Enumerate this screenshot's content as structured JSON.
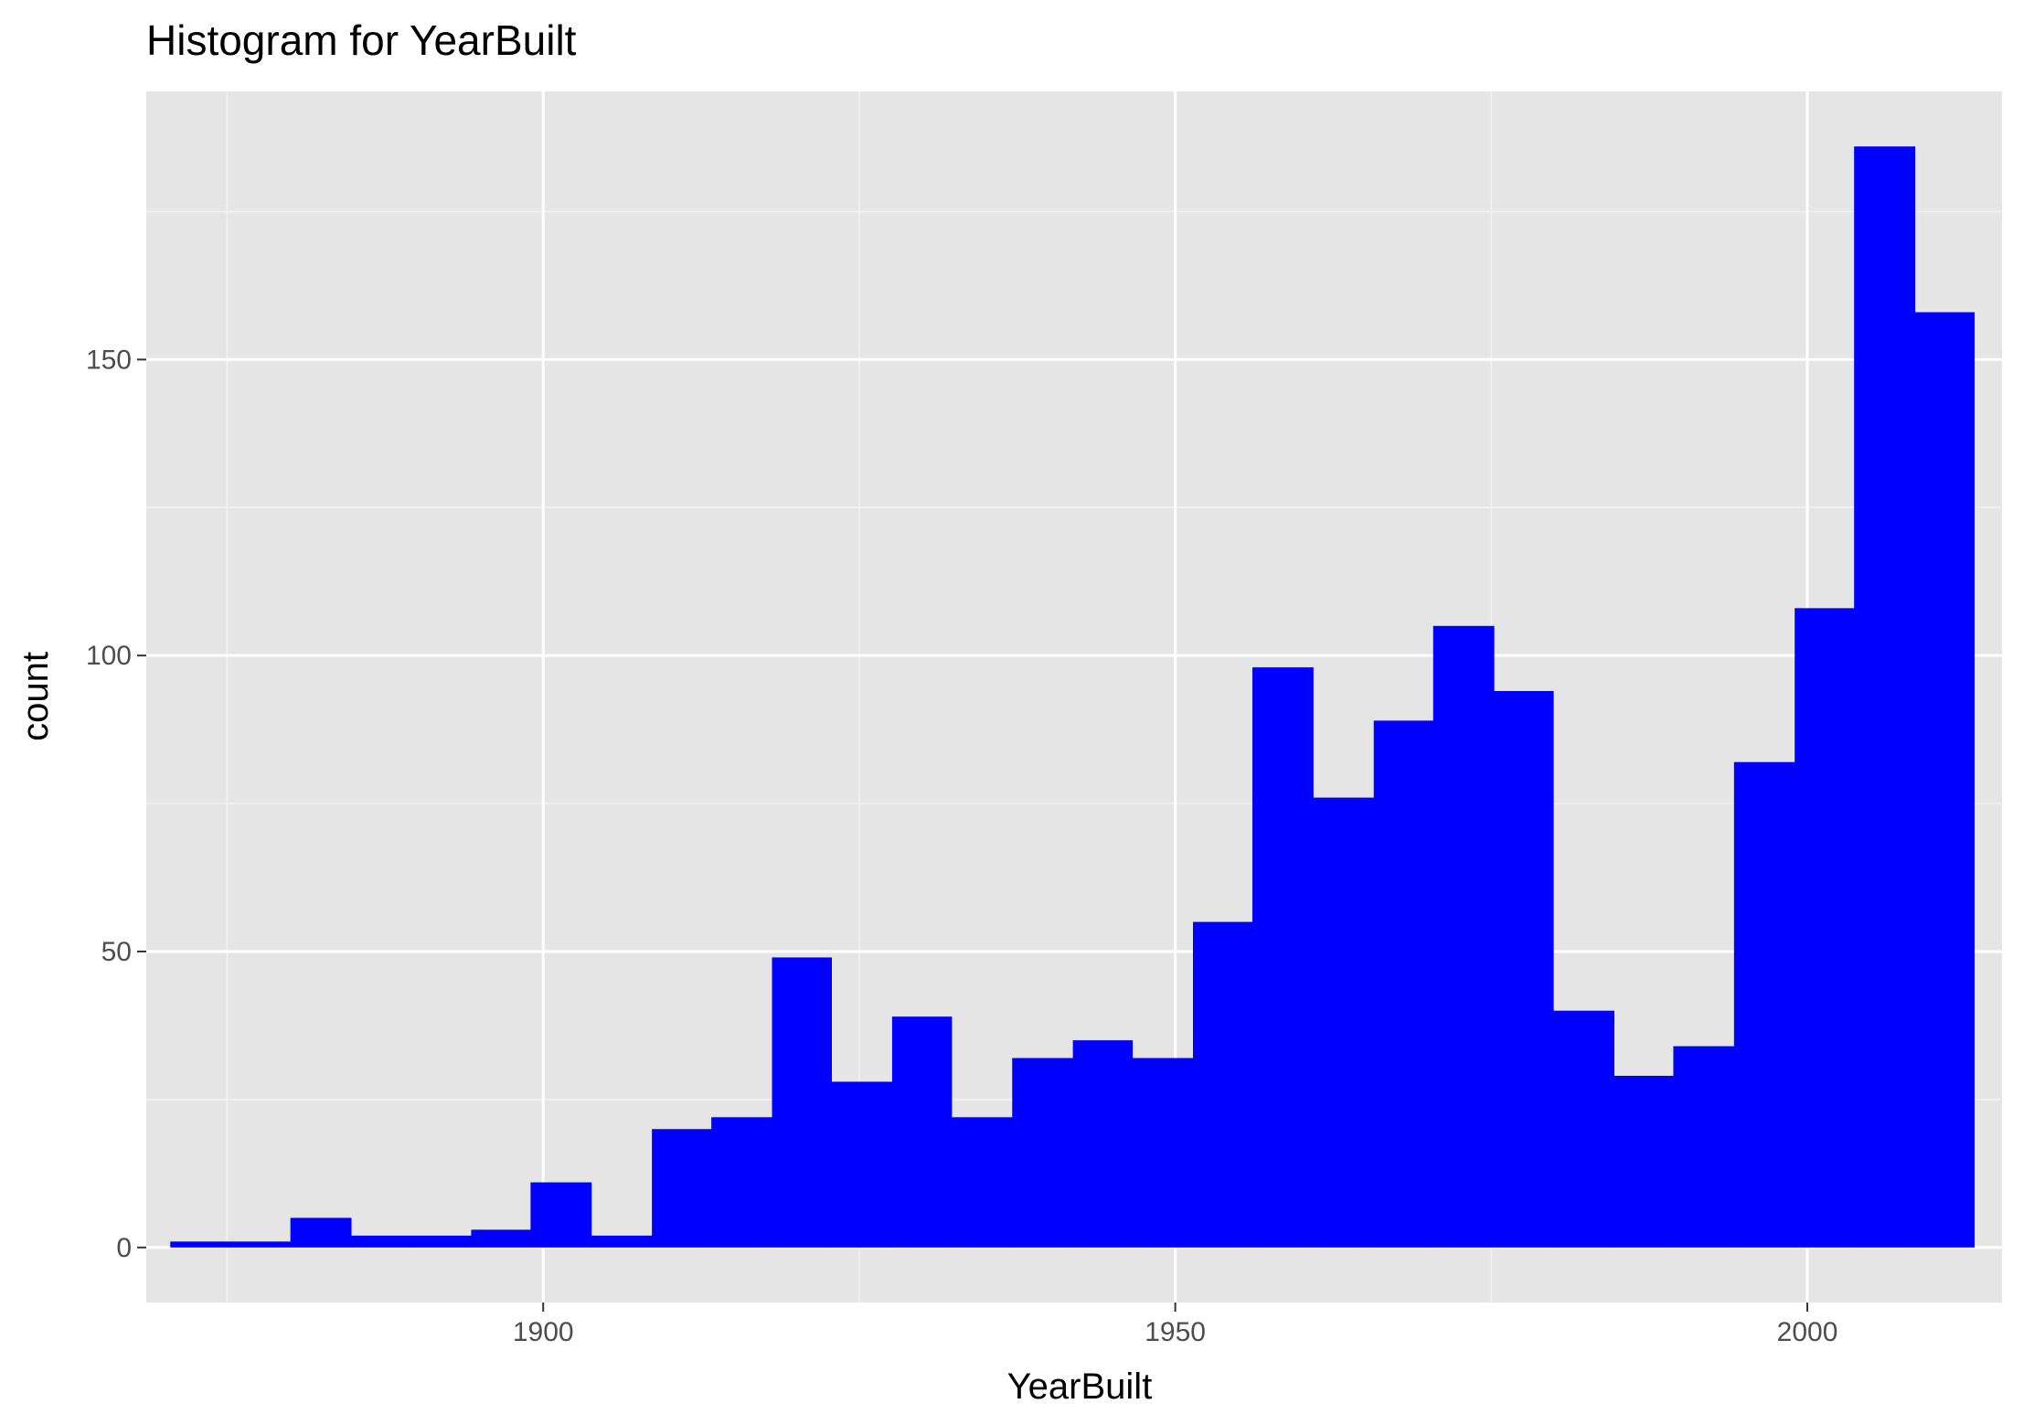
{
  "colors": {
    "panel_background": "#e5e5e5",
    "grid_major": "#ffffff",
    "grid_minor": "#f2f2f2",
    "bar_fill": "#0000ff",
    "tick_mark": "#333333"
  },
  "chart_data": {
    "type": "bar",
    "subtype": "histogram",
    "title": "Histogram for YearBuilt",
    "xlabel": "YearBuilt",
    "ylabel": "count",
    "xlim": [
      1868.6,
      2015.4
    ],
    "ylim": [
      -9.3,
      195.3
    ],
    "x_ticks": [
      1900,
      1950,
      2000
    ],
    "y_ticks": [
      0,
      50,
      100,
      150
    ],
    "grid": true,
    "legend": "none",
    "bins": [
      {
        "x0": 1870.5,
        "x1": 1875.3,
        "count": 1
      },
      {
        "x0": 1875.3,
        "x1": 1880.0,
        "count": 1
      },
      {
        "x0": 1880.0,
        "x1": 1884.8,
        "count": 5
      },
      {
        "x0": 1884.8,
        "x1": 1889.5,
        "count": 2
      },
      {
        "x0": 1889.5,
        "x1": 1894.3,
        "count": 2
      },
      {
        "x0": 1894.3,
        "x1": 1899.0,
        "count": 3
      },
      {
        "x0": 1899.0,
        "x1": 1903.8,
        "count": 11
      },
      {
        "x0": 1903.8,
        "x1": 1908.6,
        "count": 2
      },
      {
        "x0": 1908.6,
        "x1": 1913.3,
        "count": 20
      },
      {
        "x0": 1913.3,
        "x1": 1918.1,
        "count": 22
      },
      {
        "x0": 1918.1,
        "x1": 1922.8,
        "count": 49
      },
      {
        "x0": 1922.8,
        "x1": 1927.6,
        "count": 28
      },
      {
        "x0": 1927.6,
        "x1": 1932.3,
        "count": 39
      },
      {
        "x0": 1932.3,
        "x1": 1937.1,
        "count": 22
      },
      {
        "x0": 1937.1,
        "x1": 1941.9,
        "count": 32
      },
      {
        "x0": 1941.9,
        "x1": 1946.6,
        "count": 35
      },
      {
        "x0": 1946.6,
        "x1": 1951.4,
        "count": 32
      },
      {
        "x0": 1951.4,
        "x1": 1956.1,
        "count": 55
      },
      {
        "x0": 1956.1,
        "x1": 1960.9,
        "count": 98
      },
      {
        "x0": 1960.9,
        "x1": 1965.7,
        "count": 76
      },
      {
        "x0": 1965.7,
        "x1": 1970.4,
        "count": 89
      },
      {
        "x0": 1970.4,
        "x1": 1975.2,
        "count": 105
      },
      {
        "x0": 1975.2,
        "x1": 1979.9,
        "count": 94
      },
      {
        "x0": 1979.9,
        "x1": 1984.7,
        "count": 40
      },
      {
        "x0": 1984.7,
        "x1": 1989.4,
        "count": 29
      },
      {
        "x0": 1989.4,
        "x1": 1994.2,
        "count": 34
      },
      {
        "x0": 1994.2,
        "x1": 1999.0,
        "count": 82
      },
      {
        "x0": 1999.0,
        "x1": 2003.7,
        "count": 108
      },
      {
        "x0": 2003.7,
        "x1": 2008.5,
        "count": 186
      },
      {
        "x0": 2008.5,
        "x1": 2013.2,
        "count": 158
      }
    ]
  }
}
